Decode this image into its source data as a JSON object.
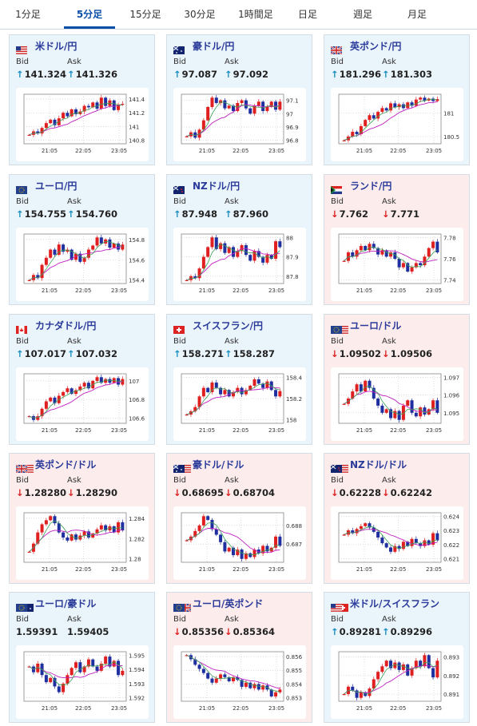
{
  "tabs": [
    "1分足",
    "5分足",
    "15分足",
    "30分足",
    "1時間足",
    "日足",
    "週足",
    "月足"
  ],
  "active_tab": 1,
  "colors": {
    "up_arrow": "#1a8fbf",
    "down_arrow": "#d22222",
    "candle_up": "#e02020",
    "candle_down": "#1f2fa0",
    "ma_short": "#3aa055",
    "ma_long": "#c020c0",
    "accent": "#0a4fa8"
  },
  "labels": {
    "bid": "Bid",
    "ask": "Ask"
  },
  "x_ticks": [
    "21:05",
    "22:05",
    "23:05"
  ],
  "cards": [
    {
      "name": "米ドル/円",
      "flag": "us-flag-icon",
      "trend": "up",
      "bid": "141.324",
      "ask": "141.326",
      "y_ticks": [
        "141.4",
        "141.2",
        "141",
        "140.8"
      ],
      "series": [
        140.88,
        140.93,
        140.9,
        140.98,
        141.05,
        141.1,
        141.02,
        141.12,
        141.2,
        141.15,
        141.25,
        141.18,
        141.22,
        141.3,
        141.28,
        141.35,
        141.26,
        141.42,
        141.3,
        141.38,
        141.24,
        141.32,
        141.33
      ]
    },
    {
      "name": "豪ドル/円",
      "flag": "au-flag-icon",
      "trend": "up",
      "bid": "97.087",
      "ask": "97.092",
      "y_ticks": [
        "97.1",
        "97",
        "96.9",
        "96.8"
      ],
      "series": [
        96.83,
        96.86,
        96.82,
        96.88,
        96.95,
        97.05,
        97.12,
        97.08,
        97.1,
        97.04,
        97.06,
        97.02,
        97.08,
        97.1,
        97.04,
        97.0,
        97.06,
        97.09,
        97.02,
        97.05,
        97.09,
        97.03,
        97.09
      ]
    },
    {
      "name": "英ポンド/円",
      "flag": "gb-flag-icon",
      "trend": "up",
      "bid": "181.296",
      "ask": "181.303",
      "y_ticks": [
        "181",
        "180.5"
      ],
      "series": [
        180.42,
        180.5,
        180.6,
        180.55,
        180.72,
        180.85,
        180.95,
        180.88,
        181.02,
        181.1,
        181.05,
        181.2,
        181.12,
        181.18,
        181.1,
        181.22,
        181.15,
        181.28,
        181.32,
        181.26,
        181.3,
        181.25,
        181.29
      ]
    },
    {
      "name": "ユーロ/円",
      "flag": "eu-flag-icon",
      "trend": "up",
      "bid": "154.755",
      "ask": "154.760",
      "y_ticks": [
        "154.8",
        "154.6",
        "154.4"
      ],
      "series": [
        154.4,
        154.45,
        154.42,
        154.55,
        154.62,
        154.7,
        154.65,
        154.75,
        154.68,
        154.7,
        154.6,
        154.66,
        154.58,
        154.62,
        154.7,
        154.74,
        154.82,
        154.76,
        154.8,
        154.72,
        154.76,
        154.7,
        154.75
      ]
    },
    {
      "name": "NZドル/円",
      "flag": "nz-flag-icon",
      "trend": "up",
      "bid": "87.948",
      "ask": "87.960",
      "y_ticks": [
        "88",
        "87.9",
        "87.8"
      ],
      "series": [
        87.78,
        87.8,
        87.79,
        87.84,
        87.9,
        87.95,
        88.0,
        87.94,
        87.97,
        87.92,
        87.95,
        87.9,
        87.93,
        87.96,
        87.91,
        87.88,
        87.93,
        87.9,
        87.87,
        87.91,
        87.89,
        87.98,
        87.95
      ]
    },
    {
      "name": "ランド/円",
      "flag": "za-flag-icon",
      "trend": "down",
      "bid": "7.762",
      "ask": "7.771",
      "y_ticks": [
        "7.78",
        "7.76",
        "7.74"
      ],
      "series": [
        7.758,
        7.766,
        7.762,
        7.768,
        7.772,
        7.768,
        7.774,
        7.77,
        7.764,
        7.768,
        7.762,
        7.766,
        7.76,
        7.752,
        7.756,
        7.748,
        7.752,
        7.756,
        7.754,
        7.762,
        7.77,
        7.776,
        7.766
      ]
    },
    {
      "name": "カナダドル/円",
      "flag": "ca-flag-icon",
      "trend": "up",
      "bid": "107.017",
      "ask": "107.032",
      "y_ticks": [
        "107",
        "106.8",
        "106.6"
      ],
      "series": [
        106.62,
        106.58,
        106.62,
        106.7,
        106.78,
        106.82,
        106.76,
        106.84,
        106.88,
        106.92,
        106.86,
        106.9,
        106.94,
        106.98,
        106.92,
        107.0,
        107.04,
        106.98,
        107.02,
        106.98,
        107.03,
        106.96,
        107.02
      ]
    },
    {
      "name": "スイスフラン/円",
      "flag": "ch-flag-icon",
      "trend": "up",
      "bid": "158.271",
      "ask": "158.287",
      "y_ticks": [
        "158.4",
        "158.2",
        "158"
      ],
      "series": [
        158.05,
        158.08,
        158.12,
        158.22,
        158.3,
        158.26,
        158.35,
        158.3,
        158.24,
        158.28,
        158.22,
        158.26,
        158.3,
        158.24,
        158.28,
        158.32,
        158.38,
        158.34,
        158.3,
        158.36,
        158.28,
        158.22,
        158.27
      ]
    },
    {
      "name": "ユーロ/ドル",
      "flag": "eu-us-flag-icon",
      "trend": "down",
      "bid": "1.09502",
      "ask": "1.09506",
      "y_ticks": [
        "1.097",
        "1.096",
        "1.095"
      ],
      "series": [
        1.0955,
        1.0958,
        1.0962,
        1.0966,
        1.0962,
        1.0968,
        1.0964,
        1.0958,
        1.0954,
        1.095,
        1.0952,
        1.0947,
        1.0951,
        1.0946,
        1.0954,
        1.0957,
        1.095,
        1.0948,
        1.0953,
        1.0949,
        1.0952,
        1.0957,
        1.095
      ]
    },
    {
      "name": "英ポンド/ドル",
      "flag": "gb-us-flag-icon",
      "trend": "down",
      "bid": "1.28280",
      "ask": "1.28290",
      "y_ticks": [
        "1.284",
        "1.282",
        "1.28"
      ],
      "series": [
        1.2807,
        1.2815,
        1.2826,
        1.2834,
        1.2838,
        1.2842,
        1.2835,
        1.2826,
        1.2821,
        1.2818,
        1.2824,
        1.2819,
        1.2823,
        1.2827,
        1.2821,
        1.2825,
        1.2829,
        1.2833,
        1.2828,
        1.2832,
        1.2826,
        1.2836,
        1.2828
      ]
    },
    {
      "name": "豪ドル/ドル",
      "flag": "au-us-flag-icon",
      "trend": "down",
      "bid": "0.68695",
      "ask": "0.68704",
      "y_ticks": [
        "0.688",
        "0.687"
      ],
      "series": [
        0.6872,
        0.6874,
        0.6877,
        0.688,
        0.6885,
        0.6883,
        0.6878,
        0.6875,
        0.6871,
        0.6866,
        0.6868,
        0.6864,
        0.6867,
        0.6862,
        0.6865,
        0.6863,
        0.6867,
        0.6865,
        0.6869,
        0.6866,
        0.6868,
        0.6874,
        0.6869
      ]
    },
    {
      "name": "NZドル/ドル",
      "flag": "nz-us-flag-icon",
      "trend": "down",
      "bid": "0.62228",
      "ask": "0.62242",
      "y_ticks": [
        "0.624",
        "0.623",
        "0.622",
        "0.621"
      ],
      "series": [
        0.6227,
        0.623,
        0.6228,
        0.6231,
        0.6233,
        0.6235,
        0.6232,
        0.6229,
        0.6225,
        0.6221,
        0.6218,
        0.6215,
        0.6219,
        0.6217,
        0.6222,
        0.6219,
        0.6224,
        0.6221,
        0.6219,
        0.6223,
        0.622,
        0.6228,
        0.6223
      ]
    },
    {
      "name": "ユーロ/豪ドル",
      "flag": "eu-au-flag-icon",
      "trend": "flat",
      "bid": "1.59391",
      "ask": "1.59405",
      "y_ticks": [
        "1.595",
        "1.594",
        "1.593",
        "1.592"
      ],
      "series": [
        1.5942,
        1.5938,
        1.5944,
        1.5936,
        1.5931,
        1.5934,
        1.5928,
        1.5924,
        1.593,
        1.5936,
        1.5941,
        1.5945,
        1.5938,
        1.5942,
        1.5947,
        1.5942,
        1.5939,
        1.5944,
        1.5949,
        1.5942,
        1.5946,
        1.5936,
        1.5939
      ]
    },
    {
      "name": "ユーロ/英ポンド",
      "flag": "eu-gb-flag-icon",
      "trend": "down",
      "bid": "0.85356",
      "ask": "0.85364",
      "y_ticks": [
        "0.856",
        "0.855",
        "0.854",
        "0.853"
      ],
      "series": [
        0.8561,
        0.8558,
        0.8554,
        0.8551,
        0.8548,
        0.8544,
        0.8541,
        0.8544,
        0.8547,
        0.8545,
        0.8542,
        0.8545,
        0.8543,
        0.8538,
        0.8541,
        0.8537,
        0.854,
        0.8536,
        0.8539,
        0.8536,
        0.8531,
        0.8534,
        0.8536
      ]
    },
    {
      "name": "米ドル/スイスフラン",
      "flag": "us-ch-flag-icon",
      "trend": "up",
      "bid": "0.89281",
      "ask": "0.89296",
      "y_ticks": [
        "0.893",
        "0.892",
        "0.891"
      ],
      "series": [
        0.891,
        0.8914,
        0.8912,
        0.8908,
        0.8911,
        0.8909,
        0.8913,
        0.8918,
        0.8922,
        0.8925,
        0.8928,
        0.8924,
        0.8927,
        0.8923,
        0.8926,
        0.892,
        0.8924,
        0.8928,
        0.8925,
        0.8931,
        0.8924,
        0.8919,
        0.8928
      ]
    }
  ]
}
